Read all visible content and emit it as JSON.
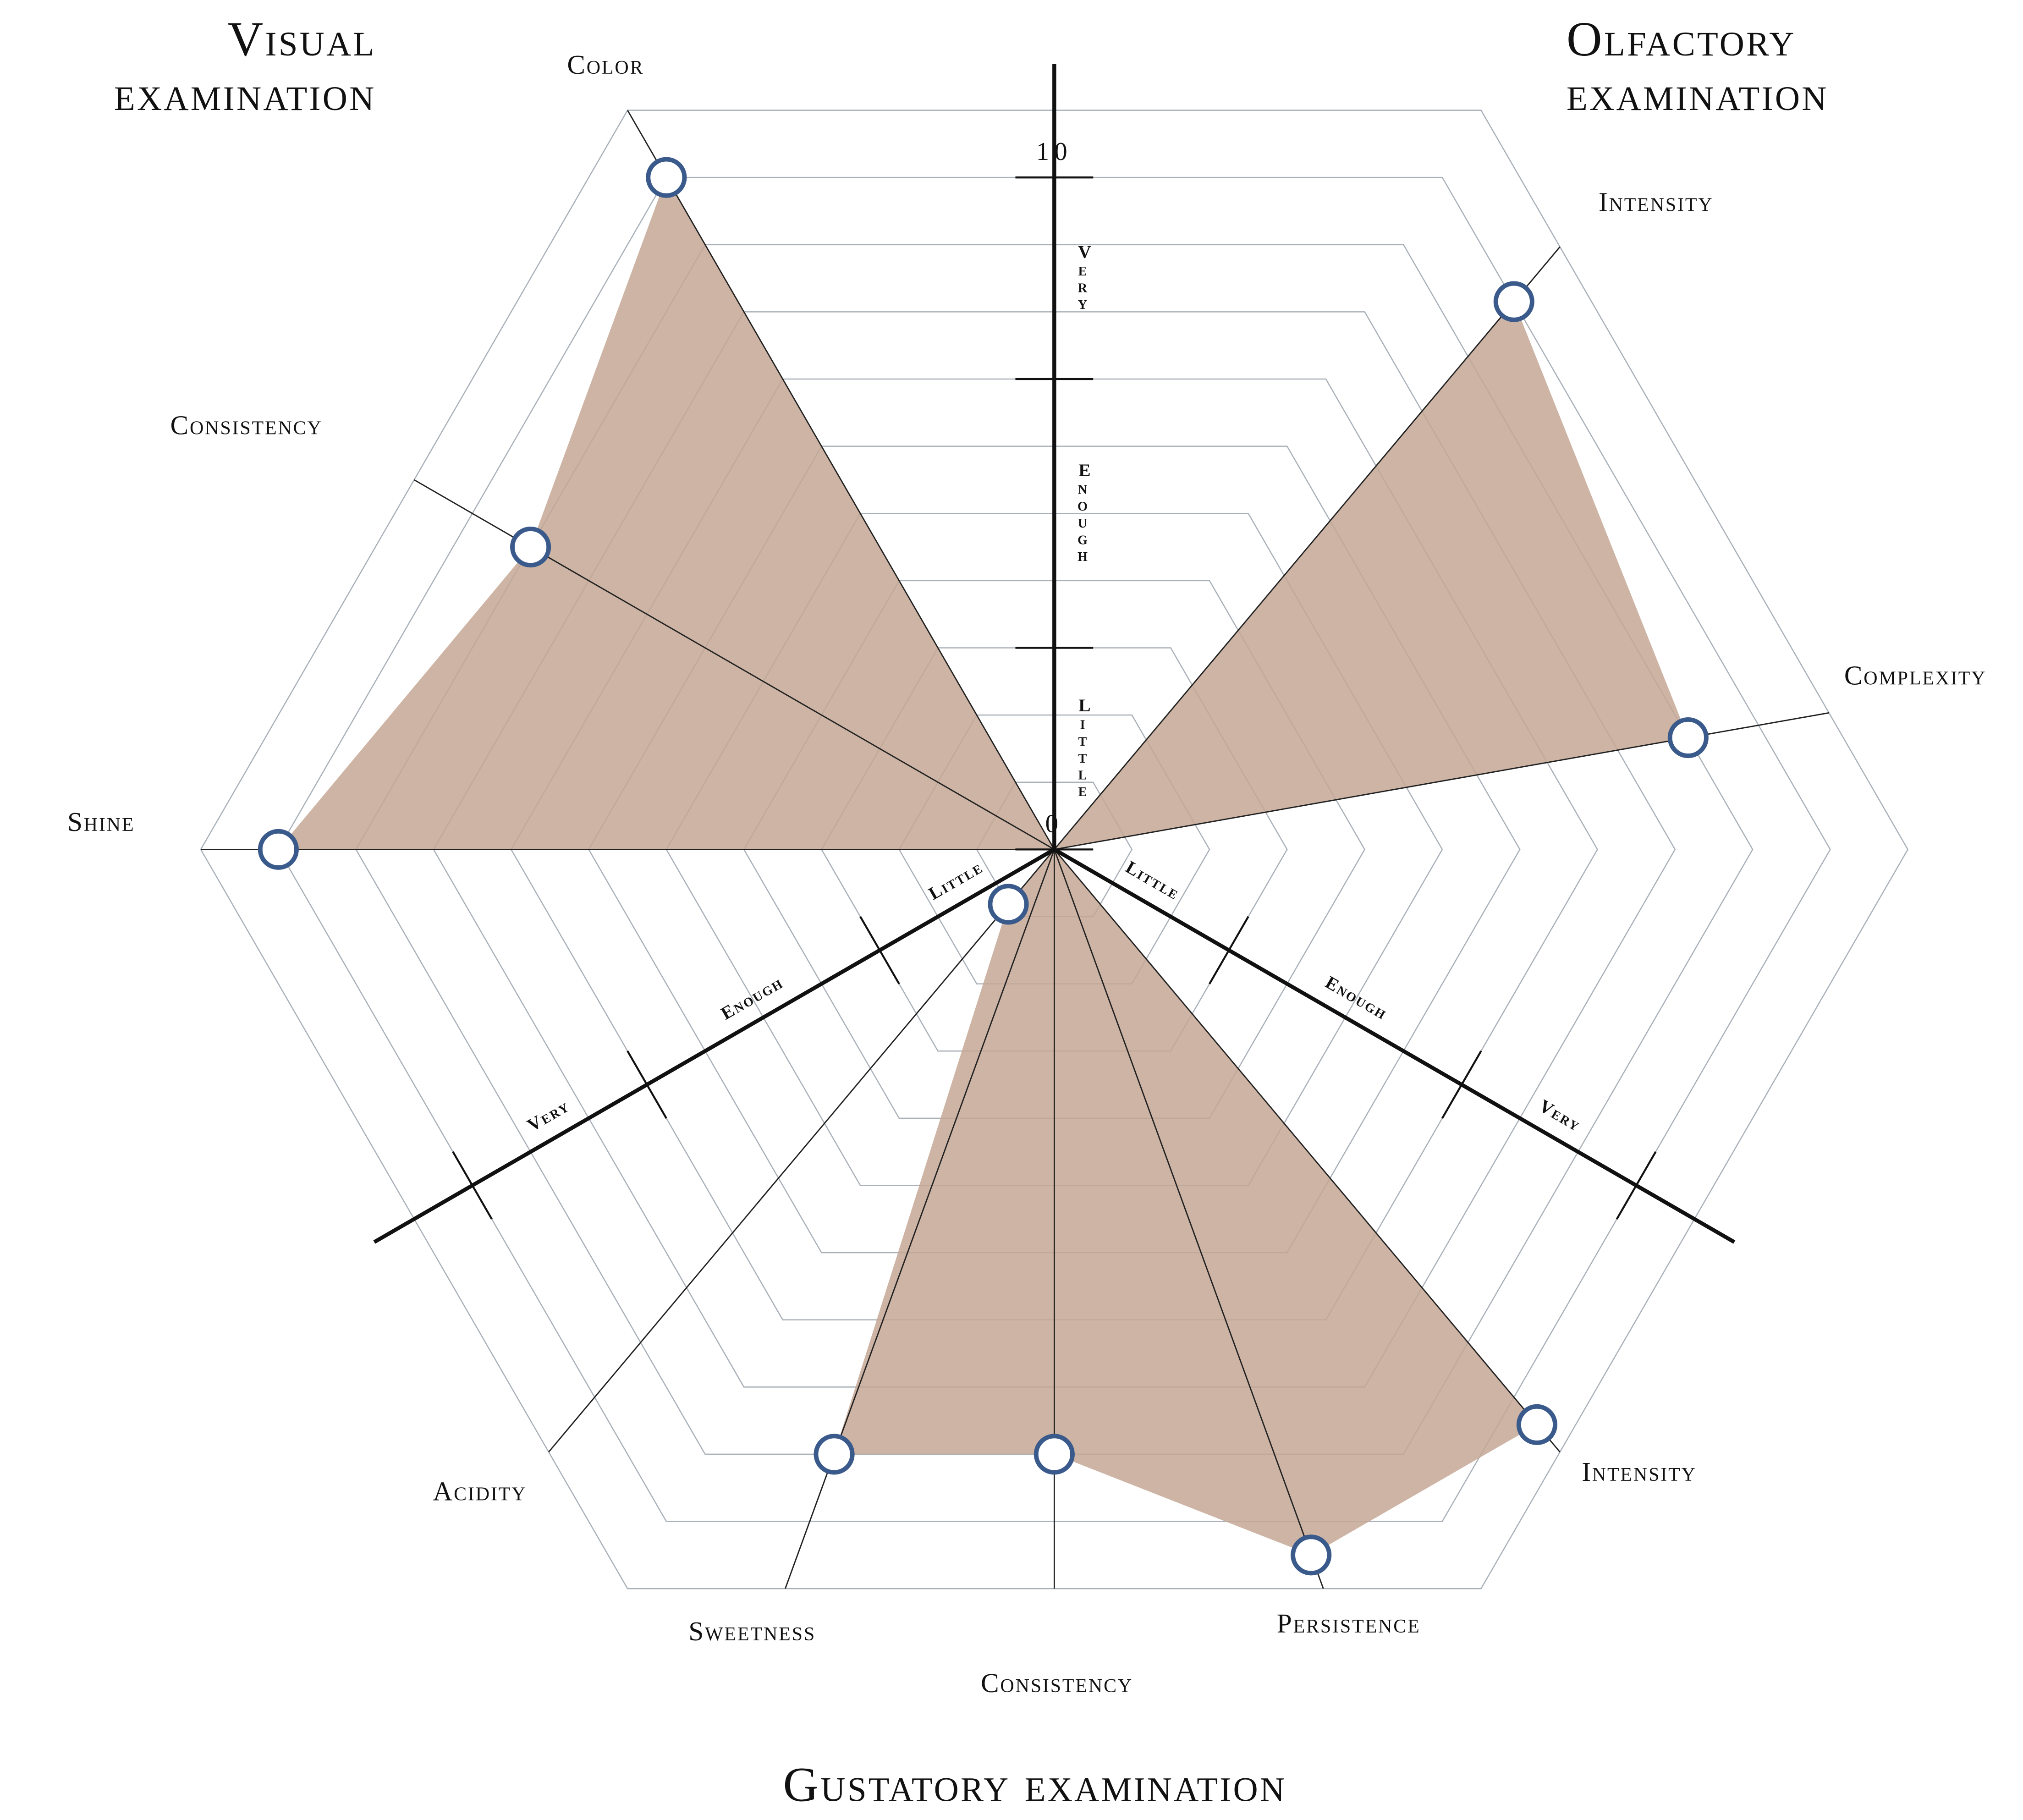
{
  "chart_data": {
    "type": "radar",
    "color": "#c4a794",
    "marker_color": "#3a5a8c",
    "ylim": [
      0,
      11
    ],
    "yticks": [
      0,
      10
    ],
    "grid_levels": [
      1,
      2,
      3,
      4,
      5,
      6,
      7,
      8,
      9,
      10,
      11
    ],
    "scale_bands": [
      {
        "label": "Little",
        "to": 3
      },
      {
        "label": "Enough",
        "to": 7
      },
      {
        "label": "Very",
        "to": 10
      }
    ],
    "groups": [
      {
        "title": [
          "Visual",
          "examination"
        ],
        "categories": [
          "Color",
          "Consistency",
          "Shine"
        ],
        "values": [
          10,
          9,
          10
        ]
      },
      {
        "title": [
          "Olfactory",
          "examination"
        ],
        "categories": [
          "Intensity",
          "Complexity"
        ],
        "values": [
          10,
          9
        ]
      },
      {
        "title": [
          "Gustatory examination"
        ],
        "categories": [
          "Acidity",
          "Sweetness",
          "Consistency",
          "Persistence",
          "Intensity"
        ],
        "values": [
          1,
          9,
          9,
          10.5,
          10.5
        ]
      }
    ]
  }
}
